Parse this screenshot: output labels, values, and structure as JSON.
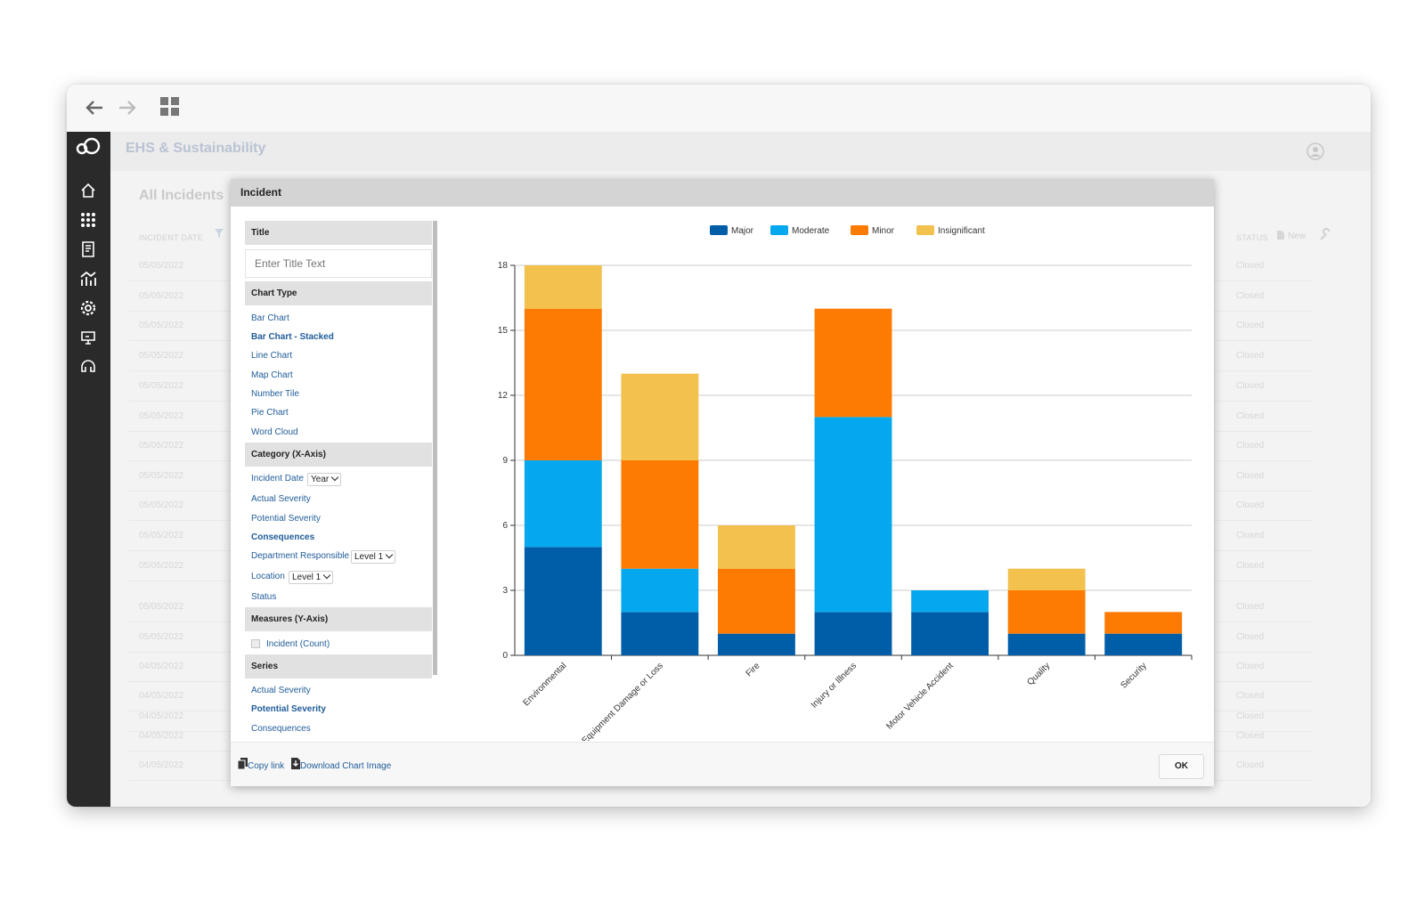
{
  "app": {
    "title": "EHS & Sustainability",
    "list_title": "All Incidents",
    "new_label": "New",
    "columns": [
      "INCIDENT DATE",
      "STATUS"
    ],
    "rows_dates": [
      "05/05/2022",
      "05/05/2022",
      "05/05/2022",
      "05/05/2022",
      "05/05/2022",
      "05/05/2022",
      "05/05/2022",
      "05/05/2022",
      "05/05/2022",
      "05/05/2022",
      "05/05/2022",
      "05/05/2022",
      "05/05/2022",
      "04/05/2022",
      "04/05/2022",
      "04/05/2022",
      "04/05/2022",
      "04/05/2022"
    ],
    "row_status": "Closed"
  },
  "modal": {
    "title": "Incident",
    "sections": {
      "title_head": "Title",
      "title_placeholder": "Enter Title Text",
      "chart_type_head": "Chart Type",
      "chart_types": [
        "Bar Chart",
        "Bar Chart - Stacked",
        "Line Chart",
        "Map Chart",
        "Number Tile",
        "Pie Chart",
        "Word Cloud"
      ],
      "category_head": "Category (X-Axis)",
      "categories": [
        "Incident Date",
        "Actual Severity",
        "Potential Severity",
        "Consequences",
        "Department Responsible",
        "Location",
        "Status"
      ],
      "incident_date_select": "Year",
      "department_select": "Level 1",
      "location_select": "Level 1",
      "measures_head": "Measures (Y-Axis)",
      "measure": "Incident (Count)",
      "series_head": "Series",
      "series_options": [
        "Actual Severity",
        "Potential Severity",
        "Consequences"
      ]
    },
    "footer": {
      "copy_link": "Copy link",
      "download": "Download Chart Image",
      "ok": "OK"
    }
  },
  "chart_data": {
    "type": "bar",
    "stacked": true,
    "categories": [
      "Environmental",
      "Equipment Damage or Loss",
      "Fire",
      "Injury or Illness",
      "Motor Vehicle Accident",
      "Quality",
      "Security"
    ],
    "series": [
      {
        "name": "Major",
        "color": "#005ea8",
        "values": [
          5,
          2,
          1,
          2,
          2,
          1,
          1
        ]
      },
      {
        "name": "Moderate",
        "color": "#05a8ee",
        "values": [
          4,
          2,
          0,
          9,
          1,
          0,
          0
        ]
      },
      {
        "name": "Minor",
        "color": "#fd7b02",
        "values": [
          7,
          5,
          3,
          5,
          0,
          2,
          1
        ]
      },
      {
        "name": "Insignificant",
        "color": "#f2c14e",
        "values": [
          2,
          4,
          2,
          0,
          0,
          1,
          0
        ]
      }
    ],
    "ylim": [
      0,
      18
    ],
    "yticks": [
      0,
      3,
      6,
      9,
      12,
      15,
      18
    ],
    "legend": "top",
    "grid": true
  }
}
